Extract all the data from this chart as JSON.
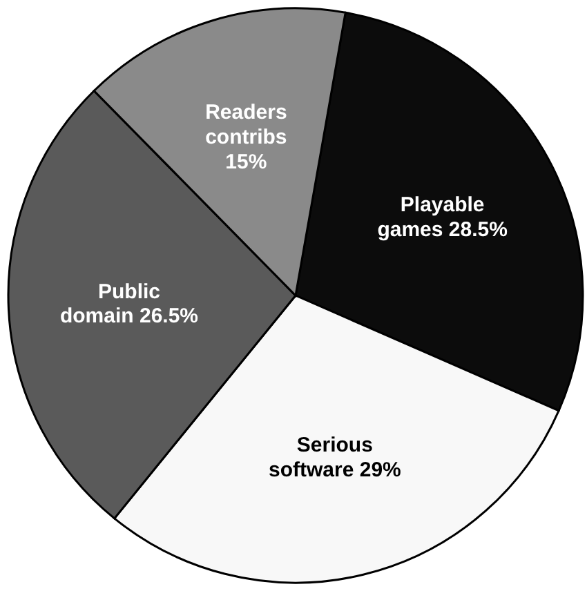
{
  "chart_data": {
    "type": "pie",
    "categories": [
      "Playable games",
      "Serious software",
      "Public domain",
      "Readers contribs"
    ],
    "values": [
      28.5,
      29,
      26.5,
      15
    ],
    "colors": [
      "#0c0c0c",
      "#f8f8f8",
      "#5a5a5a",
      "#8a8a8a"
    ],
    "value_labels": [
      "28.5%",
      "29%",
      "26.5%",
      "15%"
    ]
  }
}
